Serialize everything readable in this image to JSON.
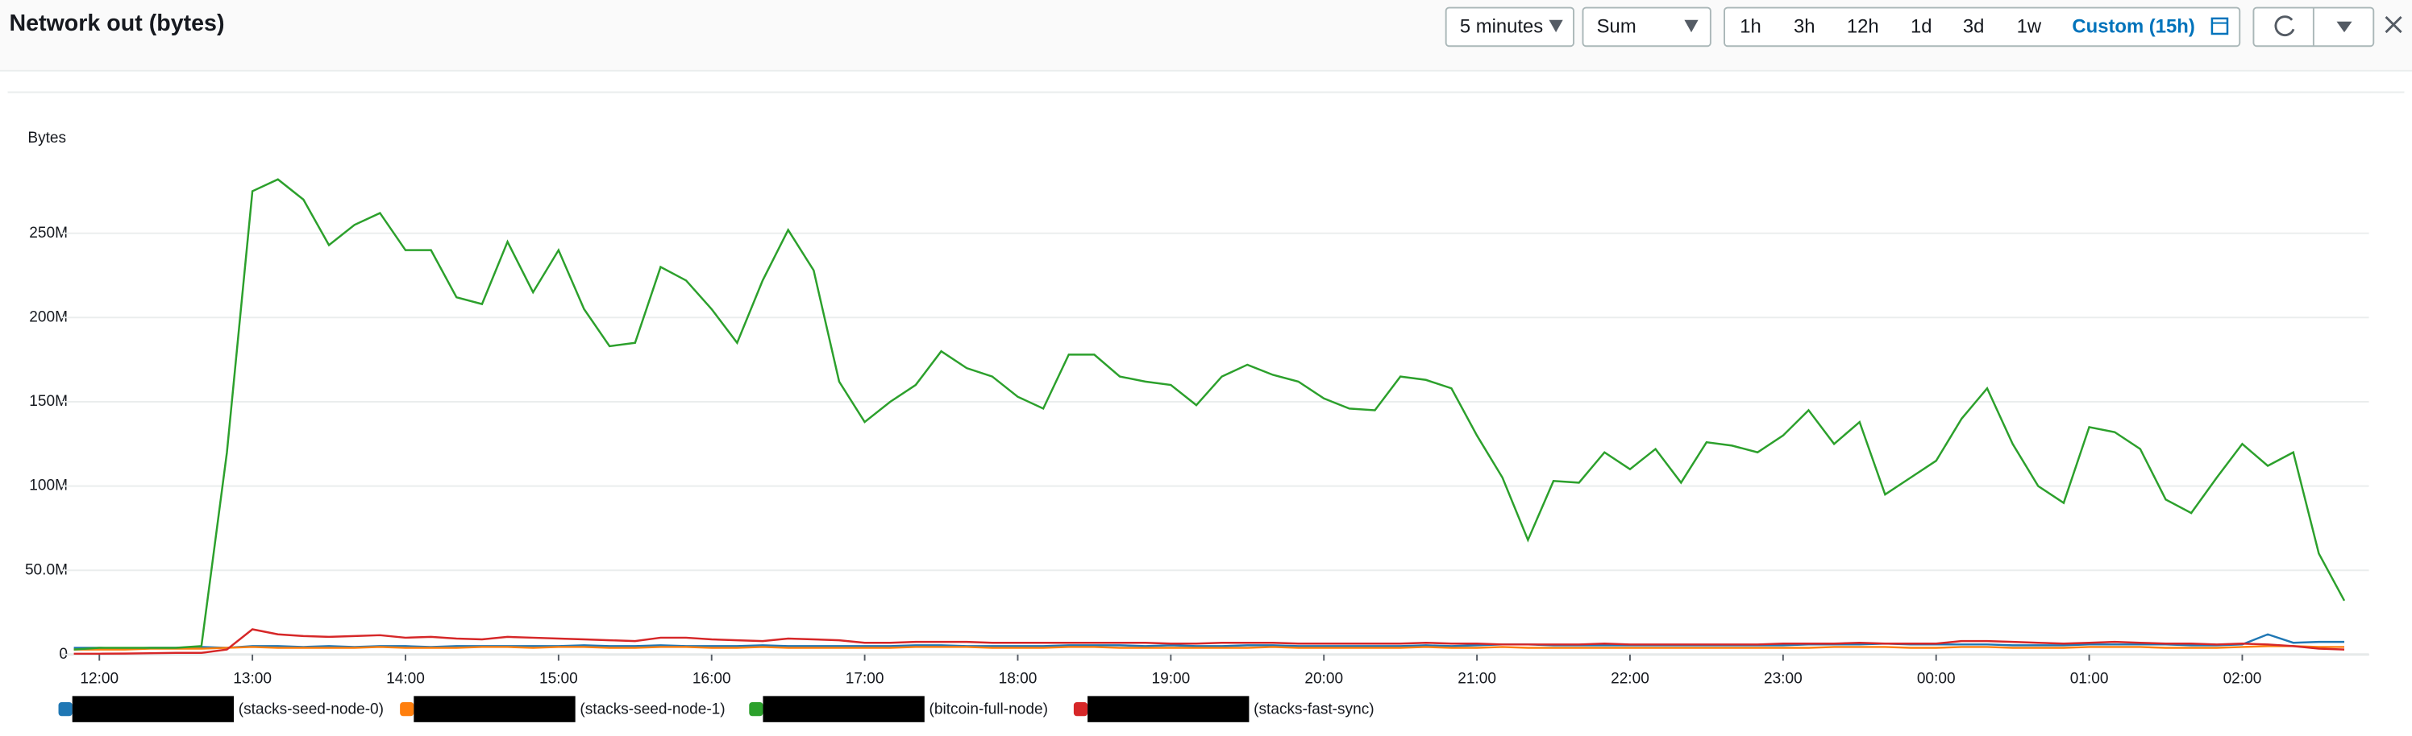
{
  "chart_data": {
    "type": "line",
    "title": "Network out (bytes)",
    "y_label": "Bytes",
    "categories": [
      null,
      "12:00",
      null,
      null,
      null,
      null,
      null,
      "13:00",
      null,
      null,
      null,
      null,
      null,
      "14:00",
      null,
      null,
      null,
      null,
      null,
      "15:00",
      null,
      null,
      null,
      null,
      null,
      "16:00",
      null,
      null,
      null,
      null,
      null,
      "17:00",
      null,
      null,
      null,
      null,
      null,
      "18:00",
      null,
      null,
      null,
      null,
      null,
      "19:00",
      null,
      null,
      null,
      null,
      null,
      "20:00",
      null,
      null,
      null,
      null,
      null,
      "21:00",
      null,
      null,
      null,
      null,
      null,
      "22:00",
      null,
      null,
      null,
      null,
      null,
      "23:00",
      null,
      null,
      null,
      null,
      null,
      "00:00",
      null,
      null,
      null,
      null,
      null,
      "01:00",
      null,
      null,
      null,
      null,
      null,
      "02:00",
      null,
      null,
      null,
      null
    ],
    "ylim": [
      0,
      300000000.0
    ],
    "yticks": [
      0,
      {
        "value": 50000000.0,
        "label": "50.0M"
      },
      {
        "value": 100000000.0,
        "label": "100M"
      },
      {
        "value": 150000000.0,
        "label": "150M"
      },
      {
        "value": 200000000.0,
        "label": "200M"
      },
      {
        "value": 250000000.0,
        "label": "250M"
      }
    ],
    "grid": true,
    "series": [
      {
        "name": "(stacks-seed-node-0)",
        "color": "#1f77b4",
        "values": [
          4000000.0,
          4000000.0,
          3500000.0,
          4000000.0,
          4000000.0,
          4500000.0,
          4000000.0,
          5000000.0,
          5000000.0,
          4500000.0,
          5000000.0,
          4500000.0,
          5000000.0,
          5000000.0,
          4500000.0,
          5000000.0,
          5000000.0,
          5000000.0,
          5000000.0,
          5000000.0,
          5500000.0,
          5000000.0,
          5000000.0,
          5500000.0,
          5000000.0,
          5000000.0,
          5000000.0,
          5500000.0,
          5000000.0,
          5000000.0,
          5000000.0,
          5000000.0,
          5000000.0,
          5500000.0,
          5500000.0,
          5000000.0,
          5000000.0,
          5000000.0,
          5000000.0,
          5500000.0,
          5500000.0,
          5500000.0,
          5000000.0,
          5500000.0,
          5000000.0,
          5000000.0,
          5500000.0,
          5500000.0,
          5000000.0,
          5000000.0,
          5000000.0,
          5000000.0,
          5000000.0,
          5500000.0,
          5000000.0,
          5500000.0,
          6000000.0,
          6000000.0,
          5500000.0,
          5500000.0,
          5500000.0,
          5500000.0,
          5500000.0,
          5500000.0,
          5500000.0,
          5500000.0,
          5500000.0,
          5500000.0,
          6000000.0,
          6000000.0,
          6000000.0,
          6500000.0,
          6000000.0,
          6000000.0,
          6000000.0,
          6000000.0,
          5500000.0,
          5500000.0,
          5500000.0,
          6000000.0,
          6000000.0,
          6000000.0,
          6000000.0,
          5500000.0,
          5500000.0,
          6000000.0,
          12000000.0,
          7000000.0,
          7500000.0,
          7500000.0
        ]
      },
      {
        "name": "(stacks-seed-node-1)",
        "color": "#ff7f0e",
        "values": [
          3000000.0,
          3000000.0,
          3000000.0,
          3500000.0,
          3500000.0,
          3500000.0,
          4000000.0,
          4500000.0,
          4000000.0,
          4000000.0,
          4000000.0,
          4000000.0,
          4500000.0,
          4000000.0,
          4000000.0,
          4000000.0,
          4500000.0,
          4500000.0,
          4000000.0,
          4500000.0,
          4500000.0,
          4000000.0,
          4000000.0,
          4500000.0,
          4500000.0,
          4000000.0,
          4000000.0,
          4500000.0,
          4000000.0,
          4000000.0,
          4000000.0,
          4000000.0,
          4000000.0,
          4500000.0,
          4500000.0,
          4500000.0,
          4000000.0,
          4000000.0,
          4000000.0,
          4500000.0,
          4500000.0,
          4000000.0,
          4000000.0,
          4000000.0,
          4000000.0,
          4000000.0,
          4000000.0,
          4500000.0,
          4000000.0,
          4000000.0,
          4000000.0,
          4000000.0,
          4000000.0,
          4500000.0,
          4000000.0,
          4000000.0,
          4500000.0,
          4000000.0,
          4000000.0,
          4000000.0,
          4000000.0,
          4000000.0,
          4000000.0,
          4000000.0,
          4000000.0,
          4000000.0,
          4000000.0,
          4000000.0,
          4000000.0,
          4500000.0,
          4500000.0,
          4500000.0,
          4000000.0,
          4000000.0,
          4500000.0,
          4500000.0,
          4000000.0,
          4000000.0,
          4000000.0,
          4500000.0,
          4500000.0,
          4500000.0,
          4000000.0,
          4000000.0,
          4000000.0,
          4500000.0,
          5000000.0,
          5000000.0,
          4500000.0,
          4500000.0
        ]
      },
      {
        "name": "(bitcoin-full-node)",
        "color": "#2ca02c",
        "values": [
          3000000.0,
          4000000.0,
          4000000.0,
          4000000.0,
          4000000.0,
          5000000.0,
          120000000.0,
          275000000.0,
          282000000.0,
          270000000.0,
          243000000.0,
          255000000.0,
          262000000.0,
          240000000.0,
          240000000.0,
          212000000.0,
          208000000.0,
          245000000.0,
          215000000.0,
          240000000.0,
          205000000.0,
          183000000.0,
          185000000.0,
          230000000.0,
          222000000.0,
          205000000.0,
          185000000.0,
          222000000.0,
          252000000.0,
          228000000.0,
          162000000.0,
          138000000.0,
          150000000.0,
          160000000.0,
          180000000.0,
          170000000.0,
          165000000.0,
          153000000.0,
          146000000.0,
          178000000.0,
          178000000.0,
          165000000.0,
          162000000.0,
          160000000.0,
          148000000.0,
          165000000.0,
          172000000.0,
          166000000.0,
          162000000.0,
          152000000.0,
          146000000.0,
          145000000.0,
          165000000.0,
          163000000.0,
          158000000.0,
          130000000.0,
          105000000.0,
          68000000.0,
          103000000.0,
          102000000.0,
          120000000.0,
          110000000.0,
          122000000.0,
          102000000.0,
          126000000.0,
          124000000.0,
          120000000.0,
          130000000.0,
          145000000.0,
          125000000.0,
          138000000.0,
          95000000.0,
          105000000.0,
          115000000.0,
          140000000.0,
          158000000.0,
          125000000.0,
          100000000.0,
          90000000.0,
          135000000.0,
          132000000.0,
          122000000.0,
          92000000.0,
          84000000.0,
          105000000.0,
          125000000.0,
          112000000.0,
          120000000.0,
          60000000.0,
          32000000.0
        ]
      },
      {
        "name": "(stacks-fast-sync)",
        "color": "#d62728",
        "values": [
          500000.0,
          500000.0,
          600000.0,
          800000.0,
          1000000.0,
          1000000.0,
          3000000.0,
          15000000.0,
          12000000.0,
          11000000.0,
          10500000.0,
          11000000.0,
          11500000.0,
          10000000.0,
          10500000.0,
          9500000.0,
          9000000.0,
          10500000.0,
          10000000.0,
          9500000.0,
          9000000.0,
          8500000.0,
          8000000.0,
          10000000.0,
          10000000.0,
          9000000.0,
          8500000.0,
          8000000.0,
          9500000.0,
          9000000.0,
          8500000.0,
          7000000.0,
          7000000.0,
          7500000.0,
          7500000.0,
          7500000.0,
          7000000.0,
          7000000.0,
          7000000.0,
          7000000.0,
          7000000.0,
          7000000.0,
          7000000.0,
          6500000.0,
          6500000.0,
          7000000.0,
          7000000.0,
          7000000.0,
          6500000.0,
          6500000.0,
          6500000.0,
          6500000.0,
          6500000.0,
          7000000.0,
          6500000.0,
          6500000.0,
          6000000.0,
          6000000.0,
          6000000.0,
          6000000.0,
          6500000.0,
          6000000.0,
          6000000.0,
          6000000.0,
          6000000.0,
          6000000.0,
          6000000.0,
          6500000.0,
          6500000.0,
          6500000.0,
          7000000.0,
          6500000.0,
          6500000.0,
          6500000.0,
          8000000.0,
          8000000.0,
          7500000.0,
          7000000.0,
          6500000.0,
          7000000.0,
          7500000.0,
          7000000.0,
          6500000.0,
          6500000.0,
          6000000.0,
          6500000.0,
          6000000.0,
          5000000.0,
          3500000.0,
          3000000.0
        ]
      }
    ]
  },
  "controls": {
    "period": "5 minutes",
    "statistic": "Sum",
    "ranges": [
      "1h",
      "3h",
      "12h",
      "1d",
      "3d",
      "1w"
    ],
    "custom": "Custom (15h)"
  }
}
